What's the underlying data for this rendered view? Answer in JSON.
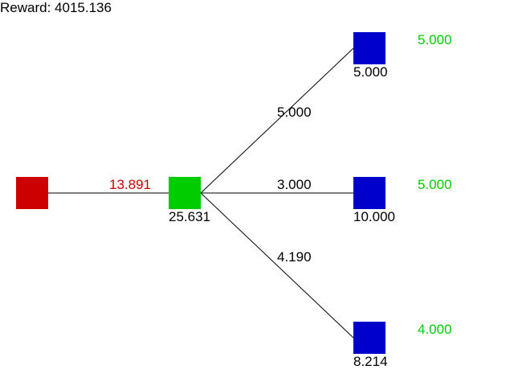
{
  "reward": {
    "label": "Reward:",
    "value": "4015.136"
  },
  "colors": {
    "source": "#cc0000",
    "hub": "#00cc00",
    "sink": "#0000cc",
    "edge": "#000000",
    "flow_text": "#cc0000",
    "capacity_text": "#00cc00"
  },
  "source": {
    "flow": "13.891"
  },
  "hub": {
    "value": "25.631"
  },
  "sinks": [
    {
      "value": "5.000",
      "edge_value": "5.000",
      "capacity": "5.000"
    },
    {
      "value": "10.000",
      "edge_value": "3.000",
      "capacity": "5.000"
    },
    {
      "value": "8.214",
      "edge_value": "4.190",
      "capacity": "4.000"
    }
  ]
}
